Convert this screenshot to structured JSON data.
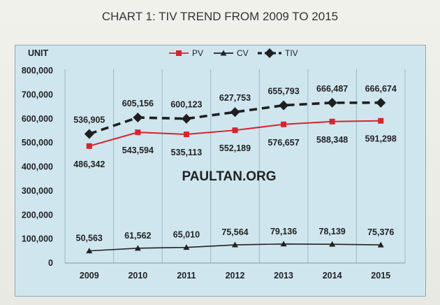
{
  "title": "CHART 1: TIV TREND FROM 2009 TO 2015",
  "watermark": "PAULTAN.ORG",
  "colors": {
    "pv": "#d9232a",
    "cv": "#222222",
    "tiv": "#1f1f1f",
    "plot_bg": "#cfe6ef"
  },
  "chart_data": {
    "type": "line",
    "title": "CHART 1: TIV TREND FROM 2009 TO 2015",
    "ylabel": "UNIT",
    "xlabel": "",
    "categories": [
      "2009",
      "2010",
      "2011",
      "2012",
      "2013",
      "2014",
      "2015"
    ],
    "ylim": [
      0,
      800000
    ],
    "yticks": [
      0,
      100000,
      200000,
      300000,
      400000,
      500000,
      600000,
      700000,
      800000
    ],
    "ytick_labels": [
      "0",
      "100,000",
      "200,000",
      "300,000",
      "400,000",
      "500,000",
      "600,000",
      "700,000",
      "800,000"
    ],
    "grid": "vertical",
    "legend_position": "top",
    "series": [
      {
        "name": "PV",
        "key": "pv",
        "values": [
          486342,
          543594,
          535113,
          552189,
          576657,
          588348,
          591298
        ],
        "labels": [
          "486,342",
          "543,594",
          "535,113",
          "552,189",
          "576,657",
          "588,348",
          "591,298"
        ]
      },
      {
        "name": "CV",
        "key": "cv",
        "values": [
          50563,
          61562,
          65010,
          75564,
          79136,
          78139,
          75376
        ],
        "labels": [
          "50,563",
          "61,562",
          "65,010",
          "75,564",
          "79,136",
          "78,139",
          "75,376"
        ]
      },
      {
        "name": "TIV",
        "key": "tiv",
        "values": [
          536905,
          605156,
          600123,
          627753,
          655793,
          666487,
          666674
        ],
        "labels": [
          "536,905",
          "605,156",
          "600,123",
          "627,753",
          "655,793",
          "666,487",
          "666,674"
        ]
      }
    ]
  }
}
